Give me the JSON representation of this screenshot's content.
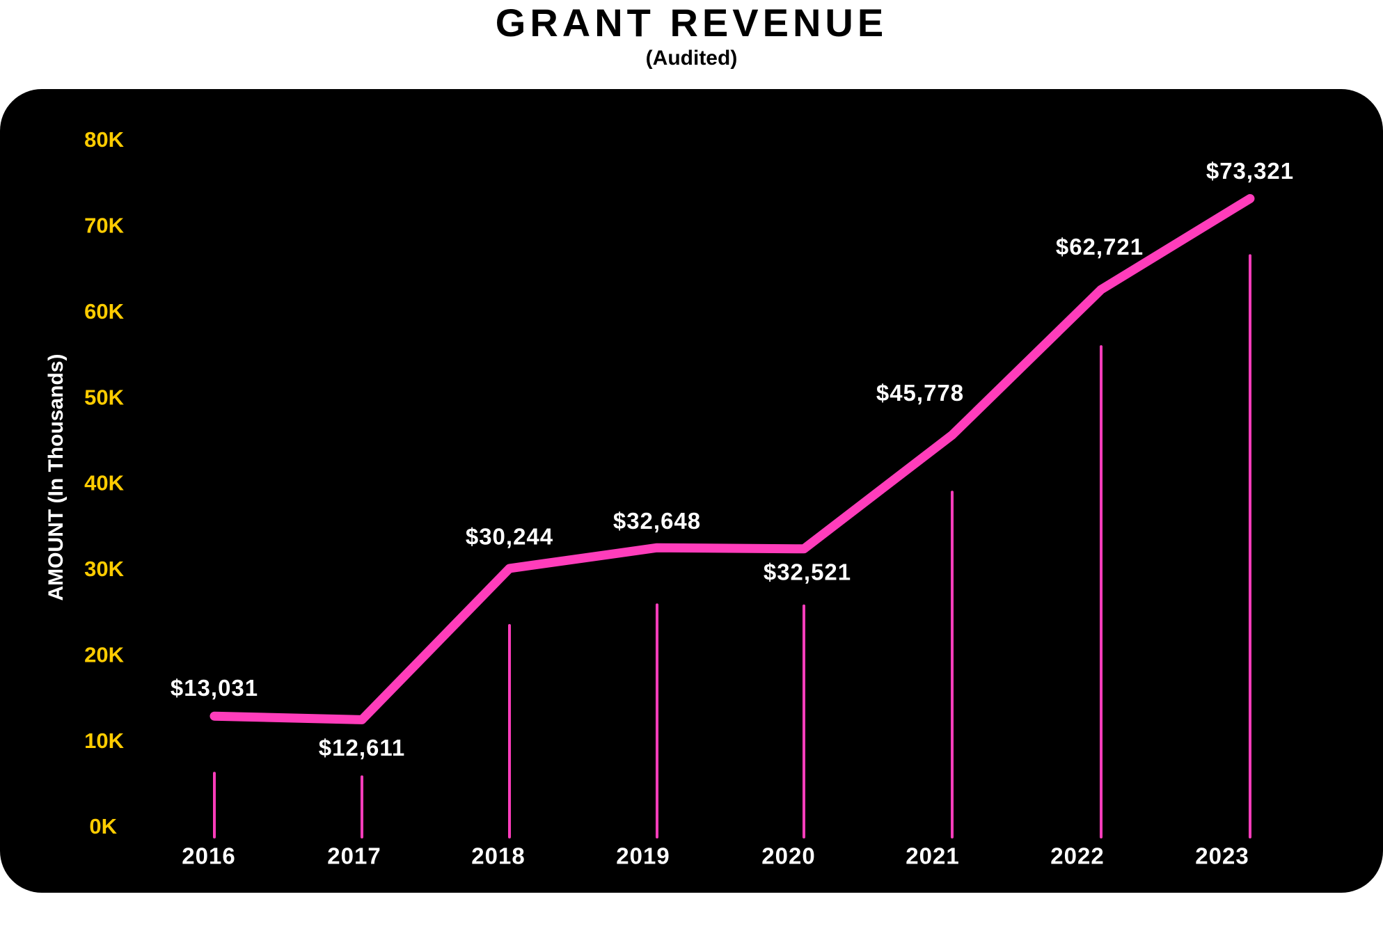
{
  "chart_data": {
    "type": "line",
    "title": "GRANT REVENUE",
    "subtitle": "(Audited)",
    "ylabel": "AMOUNT (In Thousands)",
    "xlabel": "",
    "categories": [
      "2016",
      "2017",
      "2018",
      "2019",
      "2020",
      "2021",
      "2022",
      "2023"
    ],
    "values": [
      13031,
      12611,
      30244,
      32648,
      32521,
      45778,
      62721,
      73321
    ],
    "data_labels": [
      "$13,031",
      "$12,611",
      "$30,244",
      "$32,648",
      "$32,521",
      "$45,778",
      "$62,721",
      "$73,321"
    ],
    "ylim": [
      0,
      80000
    ],
    "yticks": [
      0,
      10000,
      20000,
      30000,
      40000,
      50000,
      60000,
      70000,
      80000
    ],
    "ytick_labels": [
      "0K",
      "10K",
      "20K",
      "30K",
      "40K",
      "50K",
      "60K",
      "70K",
      "80K"
    ],
    "grid": false,
    "legend": "none",
    "colors": {
      "line": "#ff3dbb",
      "drop_lines": "#ff3dbb",
      "background": "#000000",
      "ytick_text": "#ffcc00",
      "text": "#ffffff"
    }
  }
}
